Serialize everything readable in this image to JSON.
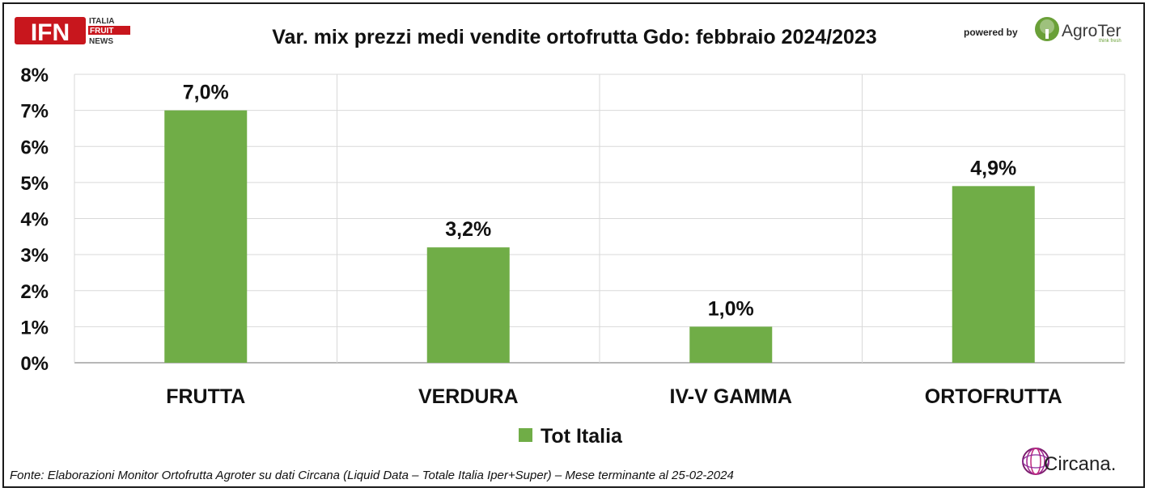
{
  "header": {
    "ifn_logo": {
      "letters": "IFN",
      "line1": "ITALIA",
      "line2": "FRUIT",
      "line3": "NEWS"
    },
    "powered_by": "powered by",
    "agroter_logo": {
      "name": "AgroTer",
      "tagline": "think fresh",
      "icon": "tree-icon"
    }
  },
  "footer": {
    "source": "Fonte: Elaborazioni Monitor Ortofrutta Agroter su dati Circana (Liquid Data – Totale Italia Iper+Super) – Mese terminante al 25-02-2024",
    "circana_logo": {
      "name": "Circana.",
      "icon": "circana-mark-icon"
    }
  },
  "colors": {
    "bar": "#70ad47",
    "grid": "#d9d9d9",
    "text": "#111111",
    "ifn_red": "#c8161d"
  },
  "chart_data": {
    "type": "bar",
    "title": "Var. mix prezzi medi vendite ortofrutta Gdo: febbraio 2024/2023",
    "categories": [
      "FRUTTA",
      "VERDURA",
      "IV-V GAMMA",
      "ORTOFRUTTA"
    ],
    "series": [
      {
        "name": "Tot Italia",
        "values": [
          7.0,
          3.2,
          1.0,
          4.9
        ],
        "labels": [
          "7,0%",
          "3,2%",
          "1,0%",
          "4,9%"
        ]
      }
    ],
    "y_ticks": [
      0,
      1,
      2,
      3,
      4,
      5,
      6,
      7,
      8
    ],
    "y_tick_labels": [
      "0%",
      "1%",
      "2%",
      "3%",
      "4%",
      "5%",
      "6%",
      "7%",
      "8%"
    ],
    "ylim": [
      0,
      8
    ],
    "grid": true,
    "legend": "bottom"
  }
}
